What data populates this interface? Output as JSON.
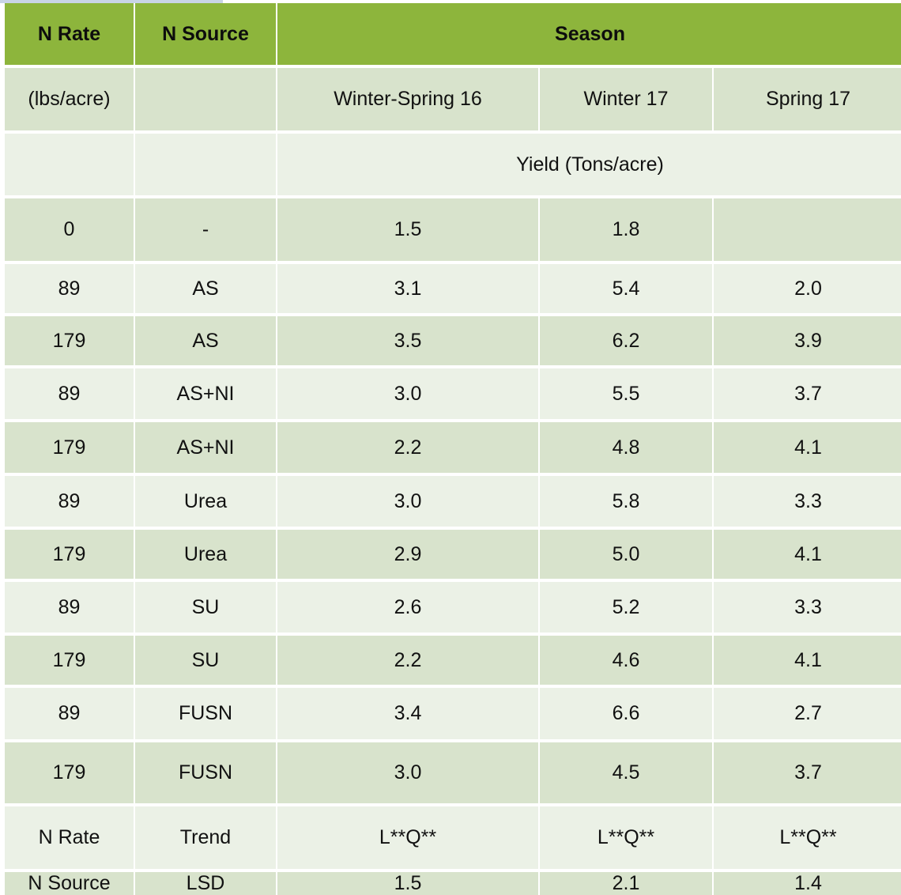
{
  "headers": {
    "n_rate": "N Rate",
    "n_source": "N Source",
    "season": "Season"
  },
  "subheaders": {
    "unit": "(lbs/acre)",
    "source_blank": "",
    "seasons": [
      "Winter-Spring 16",
      "Winter 17",
      "Spring 17"
    ]
  },
  "yield_label": "Yield (Tons/acre)",
  "rows": [
    {
      "rate": "0",
      "source": "-",
      "ws16": "1.5",
      "w17": "1.8",
      "s17": ""
    },
    {
      "rate": "89",
      "source": "AS",
      "ws16": "3.1",
      "w17": "5.4",
      "s17": "2.0"
    },
    {
      "rate": "179",
      "source": "AS",
      "ws16": "3.5",
      "w17": "6.2",
      "s17": "3.9"
    },
    {
      "rate": "89",
      "source": "AS+NI",
      "ws16": "3.0",
      "w17": "5.5",
      "s17": "3.7"
    },
    {
      "rate": "179",
      "source": "AS+NI",
      "ws16": "2.2",
      "w17": "4.8",
      "s17": "4.1"
    },
    {
      "rate": "89",
      "source": "Urea",
      "ws16": "3.0",
      "w17": "5.8",
      "s17": "3.3"
    },
    {
      "rate": "179",
      "source": "Urea",
      "ws16": "2.9",
      "w17": "5.0",
      "s17": "4.1"
    },
    {
      "rate": "89",
      "source": "SU",
      "ws16": "2.6",
      "w17": "5.2",
      "s17": "3.3"
    },
    {
      "rate": "179",
      "source": "SU",
      "ws16": "2.2",
      "w17": "4.6",
      "s17": "4.1"
    },
    {
      "rate": "89",
      "source": "FUSN",
      "ws16": "3.4",
      "w17": "6.6",
      "s17": "2.7"
    },
    {
      "rate": "179",
      "source": "FUSN",
      "ws16": "3.0",
      "w17": "4.5",
      "s17": "3.7"
    }
  ],
  "stats": [
    {
      "label": "N Rate",
      "test": "Trend",
      "ws16": "L**Q**",
      "w17": "L**Q**",
      "s17": "L**Q**"
    },
    {
      "label": "N Source",
      "test": "LSD",
      "ws16": "1.5",
      "w17": "2.1",
      "s17": "1.4"
    }
  ],
  "colors": {
    "header": "#8db53c",
    "row_dark": "#d8e3cc",
    "row_light": "#ebf1e6"
  }
}
